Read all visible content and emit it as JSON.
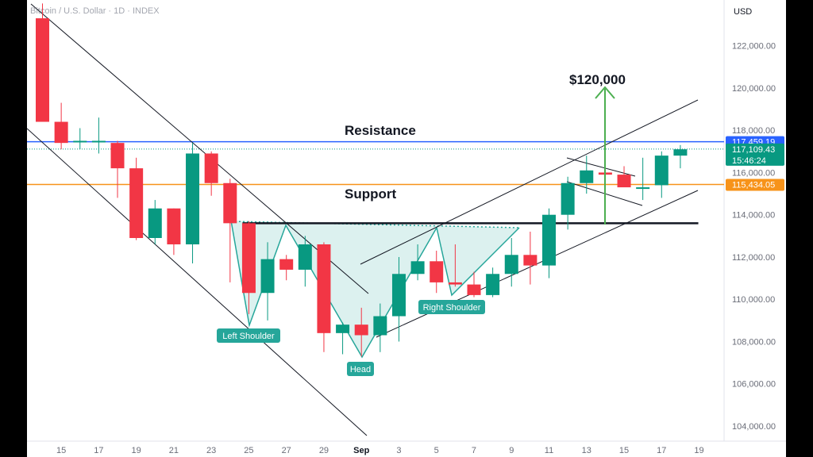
{
  "chart_data": {
    "type": "candlestick",
    "title": "Bitcoin / U.S. Dollar · 1D · INDEX",
    "currency": "USD",
    "ylim": [
      103500,
      124000
    ],
    "y_ticks": [
      "104,000.00",
      "106,000.00",
      "108,000.00",
      "110,000.00",
      "112,000.00",
      "114,000.00",
      "116,000.00",
      "118,000.00",
      "120,000.00",
      "122,000.00"
    ],
    "y_tick_values": [
      104000,
      106000,
      108000,
      110000,
      112000,
      114000,
      116000,
      118000,
      120000,
      122000
    ],
    "x_ticks": [
      {
        "label": "15",
        "i": 1
      },
      {
        "label": "17",
        "i": 3
      },
      {
        "label": "19",
        "i": 5
      },
      {
        "label": "21",
        "i": 7
      },
      {
        "label": "23",
        "i": 9
      },
      {
        "label": "25",
        "i": 11
      },
      {
        "label": "27",
        "i": 13
      },
      {
        "label": "29",
        "i": 15
      },
      {
        "label": "Sep",
        "i": 17,
        "bold": true
      },
      {
        "label": "3",
        "i": 19
      },
      {
        "label": "5",
        "i": 21
      },
      {
        "label": "7",
        "i": 23
      },
      {
        "label": "9",
        "i": 25
      },
      {
        "label": "11",
        "i": 27
      },
      {
        "label": "13",
        "i": 29
      },
      {
        "label": "15",
        "i": 31
      },
      {
        "label": "17",
        "i": 33
      },
      {
        "label": "19",
        "i": 35
      }
    ],
    "candles": [
      {
        "i": 0,
        "o": 123300,
        "h": 124000,
        "l": 118400,
        "c": 118400
      },
      {
        "i": 1,
        "o": 118400,
        "h": 119300,
        "l": 117100,
        "c": 117400
      },
      {
        "i": 2,
        "o": 117500,
        "h": 118100,
        "l": 117100,
        "c": 117500
      },
      {
        "i": 3,
        "o": 117500,
        "h": 118600,
        "l": 116900,
        "c": 117500
      },
      {
        "i": 4,
        "o": 117400,
        "h": 117500,
        "l": 114800,
        "c": 116200
      },
      {
        "i": 5,
        "o": 116200,
        "h": 116700,
        "l": 112800,
        "c": 112900
      },
      {
        "i": 6,
        "o": 112900,
        "h": 114700,
        "l": 112600,
        "c": 114300
      },
      {
        "i": 7,
        "o": 114300,
        "h": 114300,
        "l": 112100,
        "c": 112600
      },
      {
        "i": 8,
        "o": 112600,
        "h": 117400,
        "l": 111700,
        "c": 116900
      },
      {
        "i": 9,
        "o": 116900,
        "h": 117000,
        "l": 114900,
        "c": 115500
      },
      {
        "i": 10,
        "o": 115500,
        "h": 115700,
        "l": 110800,
        "c": 113600
      },
      {
        "i": 11,
        "o": 113600,
        "h": 113700,
        "l": 109300,
        "c": 110300
      },
      {
        "i": 12,
        "o": 110300,
        "h": 112700,
        "l": 109000,
        "c": 111900
      },
      {
        "i": 13,
        "o": 111900,
        "h": 112100,
        "l": 110900,
        "c": 111400
      },
      {
        "i": 14,
        "o": 111400,
        "h": 113000,
        "l": 110600,
        "c": 112600
      },
      {
        "i": 15,
        "o": 112600,
        "h": 112700,
        "l": 107500,
        "c": 108400
      },
      {
        "i": 16,
        "o": 108400,
        "h": 108900,
        "l": 107400,
        "c": 108800
      },
      {
        "i": 17,
        "o": 108800,
        "h": 109600,
        "l": 107300,
        "c": 108300
      },
      {
        "i": 18,
        "o": 108300,
        "h": 109800,
        "l": 107500,
        "c": 109200
      },
      {
        "i": 19,
        "o": 109200,
        "h": 112000,
        "l": 108000,
        "c": 111200
      },
      {
        "i": 20,
        "o": 111200,
        "h": 112600,
        "l": 110900,
        "c": 111800
      },
      {
        "i": 21,
        "o": 111800,
        "h": 112300,
        "l": 110300,
        "c": 110800
      },
      {
        "i": 22,
        "o": 110800,
        "h": 112600,
        "l": 110600,
        "c": 110700
      },
      {
        "i": 23,
        "o": 110700,
        "h": 111300,
        "l": 110100,
        "c": 110200
      },
      {
        "i": 24,
        "o": 110200,
        "h": 111500,
        "l": 110100,
        "c": 111200
      },
      {
        "i": 25,
        "o": 111200,
        "h": 112900,
        "l": 110600,
        "c": 112100
      },
      {
        "i": 26,
        "o": 112100,
        "h": 113200,
        "l": 110700,
        "c": 111600
      },
      {
        "i": 27,
        "o": 111600,
        "h": 114300,
        "l": 111000,
        "c": 114000
      },
      {
        "i": 28,
        "o": 114000,
        "h": 115800,
        "l": 113300,
        "c": 115500
      },
      {
        "i": 29,
        "o": 115500,
        "h": 116800,
        "l": 115000,
        "c": 116100
      },
      {
        "i": 30,
        "o": 116000,
        "h": 116300,
        "l": 115200,
        "c": 115900
      },
      {
        "i": 31,
        "o": 115900,
        "h": 116300,
        "l": 115400,
        "c": 115300
      },
      {
        "i": 32,
        "o": 115300,
        "h": 116700,
        "l": 114700,
        "c": 115300
      },
      {
        "i": 33,
        "o": 115400,
        "h": 117000,
        "l": 114800,
        "c": 116800
      },
      {
        "i": 34,
        "o": 116800,
        "h": 117300,
        "l": 116200,
        "c": 117100
      }
    ],
    "levels": [
      {
        "name": "resistance",
        "value": 117459.19,
        "color": "#2962ff",
        "label": "117,459.19"
      },
      {
        "name": "support",
        "value": 115434.05,
        "color": "#f7931a",
        "label": "115,434.05"
      },
      {
        "name": "current",
        "value": 117109.43,
        "color": "#089981",
        "label": "117,109.43",
        "countdown": "15:46:24"
      }
    ],
    "neckline": {
      "value": 113600,
      "i_start": 11,
      "i_end": 35
    },
    "annotations": {
      "resistance": "Resistance",
      "support": "Support",
      "target": "$120,000",
      "left_shoulder": "Left Shoulder",
      "head": "Head",
      "right_shoulder": "Right Shoulder"
    },
    "colors": {
      "up": "#089981",
      "down": "#f23645",
      "pattern": "#26a69a",
      "arrow": "#4caf50",
      "trendline": "#131722"
    }
  }
}
